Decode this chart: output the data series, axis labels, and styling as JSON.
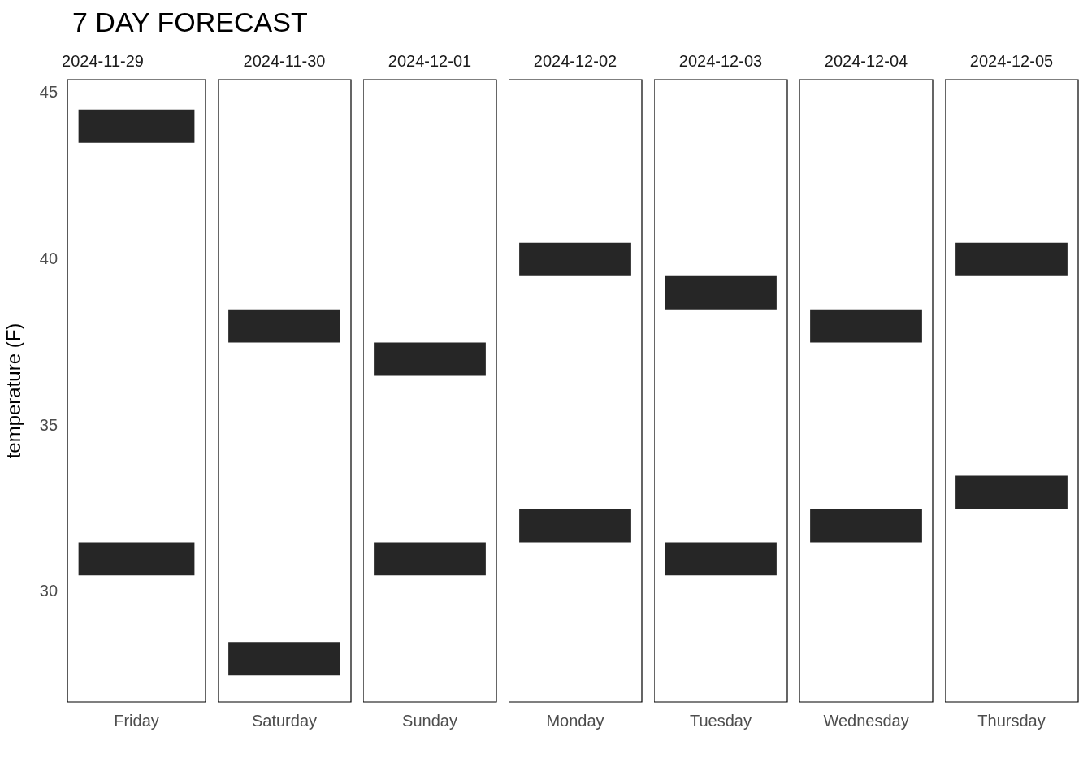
{
  "chart_data": [
    {
      "type": "bar",
      "title": "7 DAY FORECAST",
      "subtitle": "2024-11-29",
      "ylabel": "temperature (F)",
      "categories": [
        "Friday"
      ],
      "ylim": [
        26.7,
        45.4
      ],
      "yticks": [
        30,
        35,
        40,
        45
      ],
      "grid": false,
      "legend": false,
      "series": [
        {
          "color": "#262626",
          "base": [
            43.5
          ],
          "values": [
            1
          ]
        },
        {
          "color": "#262626",
          "base": [
            30.5
          ],
          "values": [
            1
          ]
        }
      ]
    },
    {
      "type": "bar",
      "subtitle": "2024-11-30",
      "categories": [
        "Saturday"
      ],
      "ylim": [
        26.7,
        45.4
      ],
      "yticks": [
        30,
        35,
        40,
        45
      ],
      "tick_labels": "x",
      "grid": false,
      "legend": false,
      "series": [
        {
          "color": "#262626",
          "base": [
            37.5
          ],
          "values": [
            1
          ]
        },
        {
          "color": "#262626",
          "base": [
            27.5
          ],
          "values": [
            1
          ]
        }
      ]
    },
    {
      "type": "bar",
      "subtitle": "2024-12-01",
      "categories": [
        "Sunday"
      ],
      "ylim": [
        26.7,
        45.4
      ],
      "yticks": [
        30,
        35,
        40,
        45
      ],
      "tick_labels": "x",
      "grid": false,
      "legend": false,
      "series": [
        {
          "color": "#262626",
          "base": [
            36.5
          ],
          "values": [
            1
          ]
        },
        {
          "color": "#262626",
          "base": [
            30.5
          ],
          "values": [
            1
          ]
        }
      ]
    },
    {
      "type": "bar",
      "subtitle": "2024-12-02",
      "categories": [
        "Monday"
      ],
      "ylim": [
        26.7,
        45.4
      ],
      "yticks": [
        30,
        35,
        40,
        45
      ],
      "tick_labels": "x",
      "grid": false,
      "legend": false,
      "series": [
        {
          "color": "#262626",
          "base": [
            39.5
          ],
          "values": [
            1
          ]
        },
        {
          "color": "#262626",
          "base": [
            31.5
          ],
          "values": [
            1
          ]
        }
      ]
    },
    {
      "type": "bar",
      "subtitle": "2024-12-03",
      "categories": [
        "Tuesday"
      ],
      "ylim": [
        26.7,
        45.4
      ],
      "yticks": [
        30,
        35,
        40,
        45
      ],
      "tick_labels": "x",
      "grid": false,
      "legend": false,
      "series": [
        {
          "color": "#262626",
          "base": [
            38.5
          ],
          "values": [
            1
          ]
        },
        {
          "color": "#262626",
          "base": [
            30.5
          ],
          "values": [
            1
          ]
        }
      ]
    },
    {
      "type": "bar",
      "subtitle": "2024-12-04",
      "categories": [
        "Wednesday"
      ],
      "ylim": [
        26.7,
        45.4
      ],
      "yticks": [
        30,
        35,
        40,
        45
      ],
      "tick_labels": "x",
      "grid": false,
      "legend": false,
      "series": [
        {
          "color": "#262626",
          "base": [
            37.5
          ],
          "values": [
            1
          ]
        },
        {
          "color": "#262626",
          "base": [
            31.5
          ],
          "values": [
            1
          ]
        }
      ]
    },
    {
      "type": "bar",
      "subtitle": "2024-12-05",
      "categories": [
        "Thursday"
      ],
      "ylim": [
        26.7,
        45.4
      ],
      "yticks": [
        30,
        35,
        40,
        45
      ],
      "tick_labels": "x",
      "grid": false,
      "legend": false,
      "series": [
        {
          "color": "#262626",
          "base": [
            39.5
          ],
          "values": [
            1
          ]
        },
        {
          "color": "#262626",
          "base": [
            32.5
          ],
          "values": [
            1
          ]
        }
      ]
    }
  ]
}
